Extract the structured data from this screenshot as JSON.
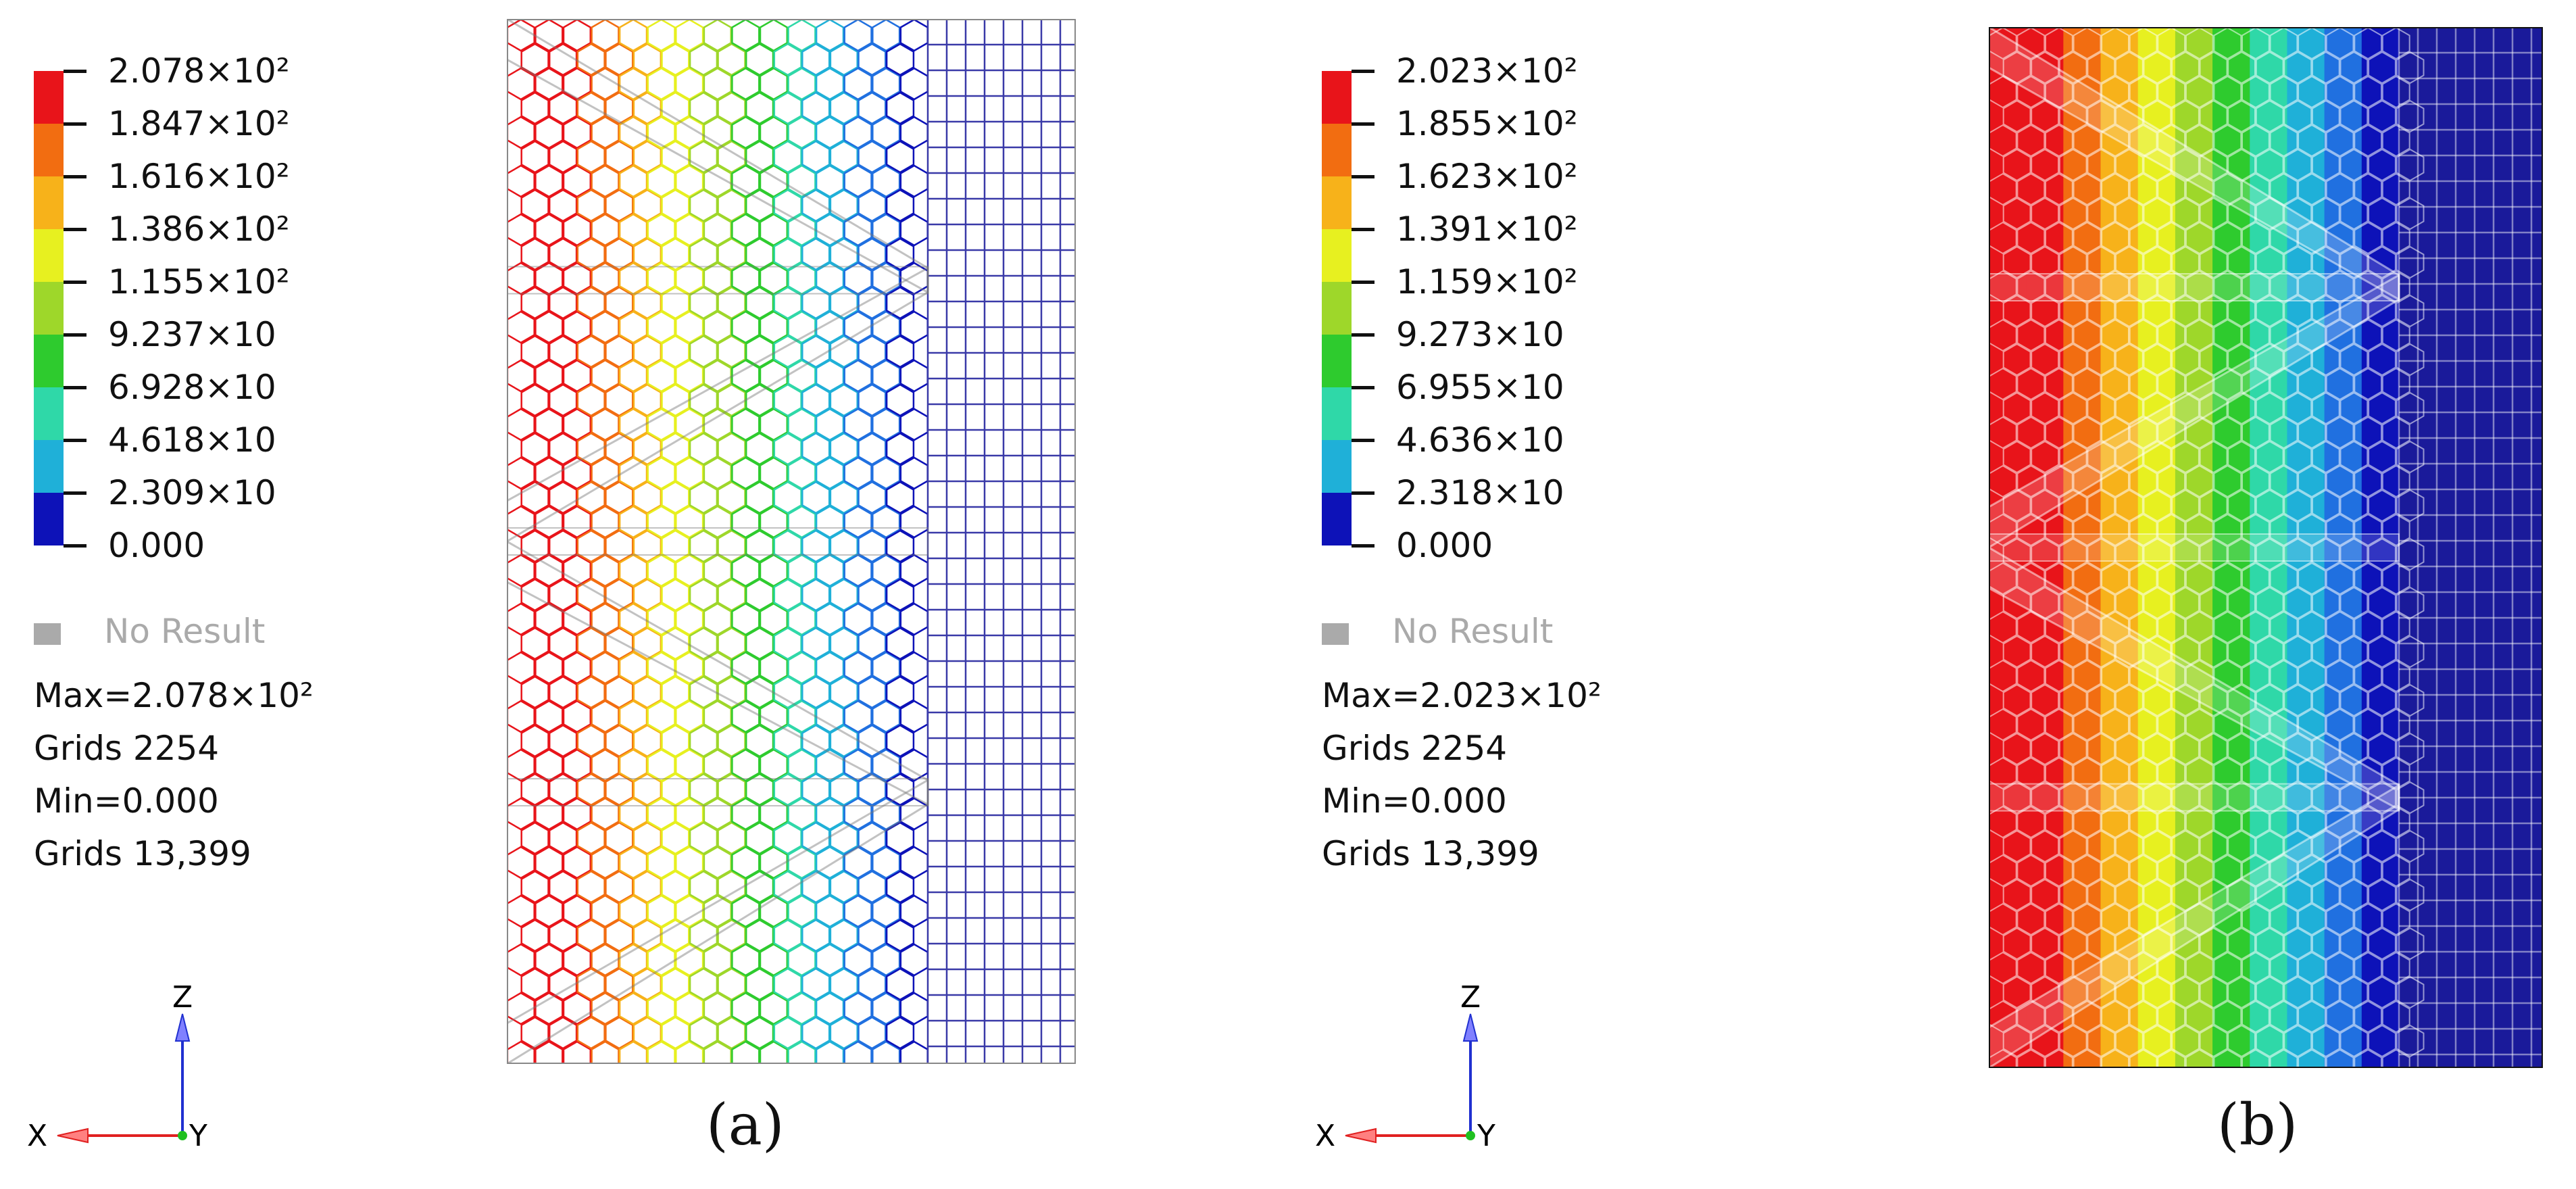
{
  "panels": [
    {
      "id": "a",
      "style": "wireframe",
      "legend": {
        "labels": [
          "2.078×10²",
          "1.847×10²",
          "1.616×10²",
          "1.386×10²",
          "1.155×10²",
          "9.237×10",
          "6.928×10",
          "4.618×10",
          "2.309×10",
          "0.000"
        ],
        "colors": [
          "#e8141a",
          "#f26d11",
          "#f7b21a",
          "#e7f020",
          "#9ed72a",
          "#2ecb2e",
          "#2fd8a8",
          "#1fb0d8",
          "#2070e0",
          "#0d12b8"
        ]
      },
      "no_result": "No Result",
      "stats": [
        "Max=2.078×10²",
        "Grids 2254",
        "Min=0.000",
        "Grids 13,399"
      ],
      "caption": "(a)"
    },
    {
      "id": "b",
      "style": "filled",
      "legend": {
        "labels": [
          "2.023×10²",
          "1.855×10²",
          "1.623×10²",
          "1.391×10²",
          "1.159×10²",
          "9.273×10",
          "6.955×10",
          "4.636×10",
          "2.318×10",
          "0.000"
        ],
        "colors": [
          "#e8141a",
          "#f26d11",
          "#f7b21a",
          "#e7f020",
          "#9ed72a",
          "#2ecb2e",
          "#2fd8a8",
          "#1fb0d8",
          "#2070e0",
          "#0d12b8"
        ]
      },
      "no_result": "No Result",
      "stats": [
        "Max=2.023×10²",
        "Grids 2254",
        "Min=0.000",
        "Grids 13,399"
      ],
      "caption": "(b)"
    }
  ],
  "axes": {
    "x_label": "X",
    "y_label": "Y",
    "z_label": "Z",
    "x_color": "#e02020",
    "y_color": "#20c020",
    "z_color": "#2030d0"
  },
  "colors": {
    "outer_right": "#3a3aa8",
    "right_fill": "#1a1a9a"
  }
}
